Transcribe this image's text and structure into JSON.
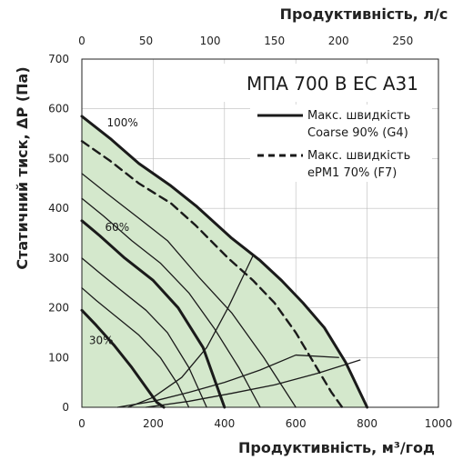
{
  "chart_data": {
    "type": "line",
    "title": "МПА 700 В ЕС А31",
    "xlabel": "Продуктивність, м³/год",
    "x2label": "Продуктивність, л/с",
    "ylabel": "Статичний тиск, ΔP (Па)",
    "xlim": [
      0,
      1000
    ],
    "x2lim": [
      0,
      277.78
    ],
    "ylim": [
      0,
      700
    ],
    "x_ticks": [
      "0",
      "200",
      "400",
      "600",
      "800",
      "1000"
    ],
    "x2_ticks": [
      "0",
      "50",
      "100",
      "150",
      "200",
      "250"
    ],
    "y_ticks": [
      "0",
      "100",
      "200",
      "300",
      "400",
      "500",
      "600",
      "700"
    ],
    "grid": true,
    "legend_position": "top-right",
    "legend": [
      {
        "label_line1": "Макс. швидкість",
        "label_line2": "Coarse 90% (G4)",
        "style": "solid"
      },
      {
        "label_line1": "Макс. швидкість",
        "label_line2": "ePM1 70% (F7)",
        "style": "dashed"
      }
    ],
    "speed_labels": [
      {
        "text": "100%",
        "x": 70,
        "y": 565
      },
      {
        "text": "60%",
        "x": 65,
        "y": 355
      },
      {
        "text": "30%",
        "x": 20,
        "y": 127
      }
    ],
    "series": [
      {
        "label": "",
        "style": "solid",
        "weight": "bold",
        "x": [
          0,
          80,
          160,
          250,
          320,
          420,
          500,
          560,
          620,
          680,
          740,
          800
        ],
        "y": [
          585,
          540,
          490,
          445,
          405,
          340,
          295,
          255,
          210,
          160,
          90,
          0
        ]
      },
      {
        "label": "",
        "style": "dashed",
        "weight": "medium",
        "x": [
          0,
          80,
          160,
          250,
          320,
          410,
          480,
          540,
          600,
          650,
          700,
          730
        ],
        "y": [
          535,
          495,
          450,
          410,
          365,
          300,
          255,
          210,
          150,
          90,
          30,
          0
        ]
      },
      {
        "label": "",
        "style": "solid",
        "weight": "thin",
        "x": [
          0,
          70,
          160,
          240,
          330,
          420,
          510,
          600
        ],
        "y": [
          470,
          430,
          380,
          335,
          260,
          190,
          100,
          0
        ]
      },
      {
        "label": "",
        "style": "solid",
        "weight": "thin",
        "x": [
          0,
          60,
          140,
          220,
          300,
          370,
          440,
          500
        ],
        "y": [
          420,
          385,
          335,
          290,
          230,
          160,
          80,
          0
        ]
      },
      {
        "label": "",
        "style": "solid",
        "weight": "bold",
        "x": [
          0,
          50,
          120,
          200,
          270,
          340,
          400
        ],
        "y": [
          375,
          345,
          300,
          255,
          200,
          120,
          0
        ]
      },
      {
        "label": "",
        "style": "solid",
        "weight": "thin",
        "x": [
          0,
          50,
          110,
          180,
          240,
          300,
          350
        ],
        "y": [
          300,
          270,
          235,
          195,
          150,
          80,
          0
        ]
      },
      {
        "label": "",
        "style": "solid",
        "weight": "thin",
        "x": [
          0,
          40,
          100,
          160,
          220,
          270,
          300
        ],
        "y": [
          240,
          215,
          180,
          145,
          100,
          45,
          0
        ]
      },
      {
        "label": "",
        "style": "solid",
        "weight": "bold",
        "x": [
          0,
          40,
          90,
          140,
          180,
          210,
          230
        ],
        "y": [
          195,
          165,
          125,
          80,
          40,
          10,
          0
        ]
      },
      {
        "label": "",
        "style": "solid",
        "weight": "thin",
        "x": [
          130,
          200,
          280,
          350,
          410,
          480
        ],
        "y": [
          0,
          20,
          60,
          120,
          200,
          305
        ]
      },
      {
        "label": "",
        "style": "solid",
        "weight": "thin",
        "x": [
          100,
          200,
          300,
          400,
          500,
          600,
          720
        ],
        "y": [
          0,
          12,
          30,
          50,
          75,
          105,
          100
        ]
      },
      {
        "label": "",
        "style": "solid",
        "weight": "thin",
        "x": [
          180,
          300,
          420,
          540,
          660,
          780
        ],
        "y": [
          0,
          12,
          28,
          45,
          68,
          95
        ]
      }
    ]
  }
}
